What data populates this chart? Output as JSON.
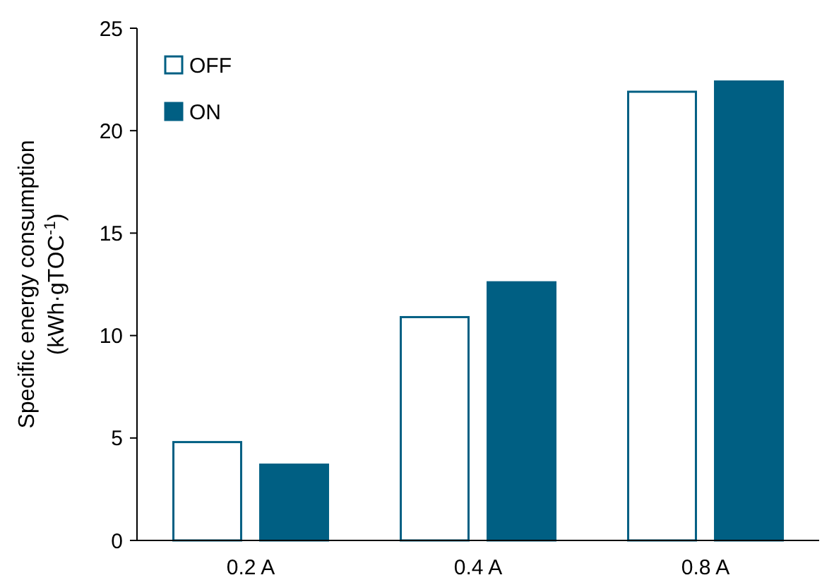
{
  "chart_data": {
    "type": "bar",
    "ylabel": "Specific energy consumption\n(kWh·gTOC$^{-1}$)",
    "categories": [
      "0.2 A",
      "0.4 A",
      "0.8 A"
    ],
    "series": [
      {
        "name": "OFF",
        "color": "#ffffff",
        "values": [
          4.8,
          10.9,
          21.9
        ]
      },
      {
        "name": "ON",
        "color": "#005f83",
        "values": [
          3.7,
          12.6,
          22.4
        ]
      }
    ],
    "ylim": [
      0,
      25
    ],
    "yticks": [
      0,
      5,
      10,
      15,
      20,
      25
    ],
    "grid": false,
    "legend": "top left"
  }
}
